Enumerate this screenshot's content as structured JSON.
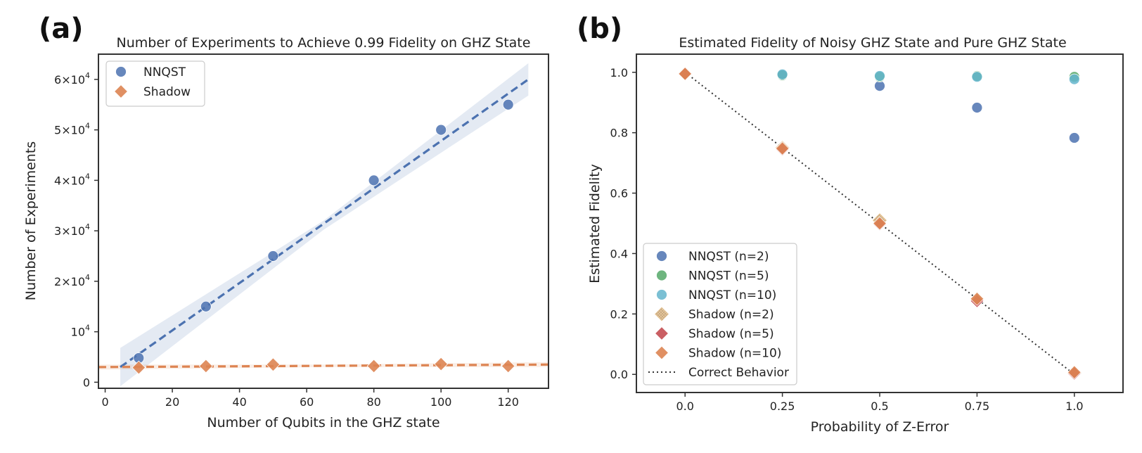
{
  "chart_data": [
    {
      "panel_label": "(a)",
      "type": "scatter",
      "title": "Number of Experiments to Achieve 0.99 Fidelity on GHZ State",
      "xlabel": "Number of Qubits in the GHZ state",
      "ylabel": "Number of Experiments",
      "xlim": [
        -2,
        132
      ],
      "ylim": [
        -1200,
        65000
      ],
      "xticks": [
        0,
        20,
        40,
        60,
        80,
        100,
        120
      ],
      "xtick_labels": [
        "0",
        "20",
        "40",
        "60",
        "80",
        "100",
        "120"
      ],
      "yticks": [
        0,
        10000,
        20000,
        30000,
        40000,
        50000,
        60000
      ],
      "ytick_labels": [
        {
          "base": "0",
          "exp": ""
        },
        {
          "base": "10",
          "exp": "4"
        },
        {
          "base": "2×10",
          "exp": "4"
        },
        {
          "base": "3×10",
          "exp": "4"
        },
        {
          "base": "4×10",
          "exp": "4"
        },
        {
          "base": "5×10",
          "exp": "4"
        },
        {
          "base": "6×10",
          "exp": "4"
        }
      ],
      "legend_position": "top-left",
      "series": [
        {
          "name": "NNQST",
          "marker": "circle",
          "color": "#4c72b0",
          "points": [
            [
              10,
              4800
            ],
            [
              30,
              15000
            ],
            [
              50,
              25000
            ],
            [
              80,
              40000
            ],
            [
              100,
              50000
            ],
            [
              120,
              55000
            ]
          ],
          "fit": {
            "x": [
              4.5,
              126
            ],
            "y": [
              3000,
              60000
            ]
          },
          "band": {
            "x": [
              4.5,
              65,
              126
            ],
            "lower": [
              -800,
              30200,
              56800
            ],
            "upper": [
              6800,
              32000,
              63200
            ]
          }
        },
        {
          "name": "Shadow",
          "marker": "diamond",
          "color": "#dd8452",
          "points": [
            [
              10,
              2900
            ],
            [
              30,
              3200
            ],
            [
              50,
              3500
            ],
            [
              80,
              3200
            ],
            [
              100,
              3600
            ],
            [
              120,
              3200
            ]
          ],
          "fit": {
            "x": [
              -2,
              132
            ],
            "y": [
              3000,
              3500
            ]
          },
          "band": {
            "x": [
              -2,
              65,
              132
            ],
            "lower": [
              2500,
              3000,
              3000
            ],
            "upper": [
              3500,
              3500,
              4000
            ]
          }
        }
      ]
    },
    {
      "panel_label": "(b)",
      "type": "scatter",
      "title": "Estimated Fidelity of Noisy GHZ State and Pure GHZ State",
      "xlabel": "Probability of Z-Error",
      "ylabel": "Estimated Fidelity",
      "xlim": [
        -0.125,
        1.125
      ],
      "ylim": [
        -0.06,
        1.06
      ],
      "xticks": [
        0.0,
        0.25,
        0.5,
        0.75,
        1.0
      ],
      "xtick_labels": [
        "0.0",
        "0.25",
        "0.5",
        "0.75",
        "1.0"
      ],
      "yticks": [
        0.0,
        0.2,
        0.4,
        0.6,
        0.8,
        1.0
      ],
      "ytick_labels": [
        "0.0",
        "0.2",
        "0.4",
        "0.6",
        "0.8",
        "1.0"
      ],
      "legend_position": "bottom-left",
      "series": [
        {
          "name": "NNQST (n=2)",
          "marker": "circle",
          "color": "#4c72b0",
          "points": [
            [
              0,
              0.995
            ],
            [
              0.25,
              0.99
            ],
            [
              0.5,
              0.955
            ],
            [
              0.75,
              0.883
            ],
            [
              1.0,
              0.783
            ]
          ]
        },
        {
          "name": "NNQST (n=5)",
          "marker": "circle",
          "color": "#55a868",
          "points": [
            [
              0,
              0.995
            ],
            [
              0.25,
              0.99
            ],
            [
              0.5,
              0.985
            ],
            [
              0.75,
              0.988
            ],
            [
              1.0,
              0.985
            ]
          ]
        },
        {
          "name": "NNQST (n=10)",
          "marker": "circle",
          "color": "#64b5cd",
          "points": [
            [
              0,
              0.995
            ],
            [
              0.25,
              0.993
            ],
            [
              0.5,
              0.988
            ],
            [
              0.75,
              0.985
            ],
            [
              1.0,
              0.977
            ]
          ]
        },
        {
          "name": "Shadow (n=2)",
          "marker": "diamond-hatched",
          "color": "#e5c494",
          "points": [
            [
              0,
              0.995
            ],
            [
              0.25,
              0.75
            ],
            [
              0.5,
              0.51
            ],
            [
              0.75,
              0.25
            ],
            [
              1.0,
              0.005
            ]
          ]
        },
        {
          "name": "Shadow (n=5)",
          "marker": "diamond",
          "color": "#c44e52",
          "points": [
            [
              0,
              0.995
            ],
            [
              0.25,
              0.745
            ],
            [
              0.5,
              0.497
            ],
            [
              0.75,
              0.243
            ],
            [
              1.0,
              0.003
            ]
          ]
        },
        {
          "name": "Shadow (n=10)",
          "marker": "diamond",
          "color": "#dd8452",
          "points": [
            [
              0,
              0.995
            ],
            [
              0.25,
              0.748
            ],
            [
              0.5,
              0.5
            ],
            [
              0.75,
              0.25
            ],
            [
              1.0,
              0.007
            ]
          ]
        },
        {
          "name": "Correct Behavior",
          "marker": "dotted-line",
          "color": "#333333",
          "line": {
            "x": [
              0,
              1.0
            ],
            "y": [
              1.0,
              0.0
            ]
          }
        }
      ]
    }
  ]
}
